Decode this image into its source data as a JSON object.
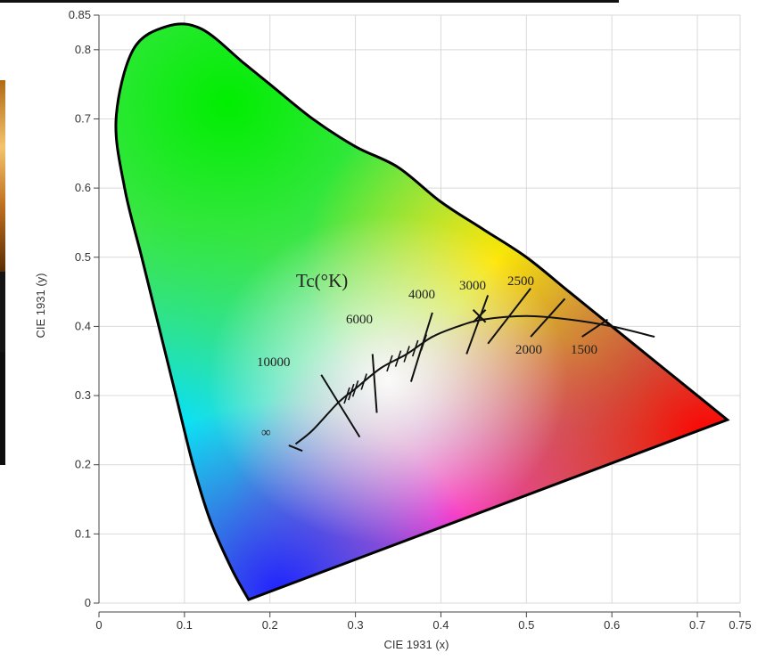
{
  "chart_data": {
    "type": "scatter",
    "title": "",
    "xlabel": "CIE 1931 (x)",
    "ylabel": "CIE 1931 (y)",
    "xlim": [
      0,
      0.75
    ],
    "ylim": [
      0,
      0.85
    ],
    "x_ticks": [
      "0",
      "0.1",
      "0.2",
      "0.3",
      "0.4",
      "0.5",
      "0.6",
      "0.7",
      "0.75"
    ],
    "y_ticks": [
      "0",
      "0.1",
      "0.2",
      "0.3",
      "0.4",
      "0.5",
      "0.6",
      "0.7",
      "0.8",
      "0.85"
    ],
    "grid": true,
    "spectral_locus": [
      [
        0.175,
        0.005
      ],
      [
        0.155,
        0.05
      ],
      [
        0.13,
        0.12
      ],
      [
        0.11,
        0.2
      ],
      [
        0.09,
        0.3
      ],
      [
        0.07,
        0.4
      ],
      [
        0.05,
        0.5
      ],
      [
        0.03,
        0.6
      ],
      [
        0.02,
        0.7
      ],
      [
        0.04,
        0.8
      ],
      [
        0.08,
        0.834
      ],
      [
        0.12,
        0.83
      ],
      [
        0.17,
        0.78
      ],
      [
        0.2,
        0.75
      ],
      [
        0.25,
        0.7
      ],
      [
        0.3,
        0.66
      ],
      [
        0.35,
        0.63
      ],
      [
        0.4,
        0.58
      ],
      [
        0.45,
        0.54
      ],
      [
        0.5,
        0.5
      ],
      [
        0.55,
        0.45
      ],
      [
        0.6,
        0.4
      ],
      [
        0.65,
        0.35
      ],
      [
        0.7,
        0.3
      ],
      [
        0.735,
        0.265
      ]
    ],
    "planckian_locus": [
      [
        0.23,
        0.23
      ],
      [
        0.25,
        0.25
      ],
      [
        0.28,
        0.29
      ],
      [
        0.3,
        0.31
      ],
      [
        0.33,
        0.34
      ],
      [
        0.36,
        0.36
      ],
      [
        0.39,
        0.385
      ],
      [
        0.42,
        0.4
      ],
      [
        0.45,
        0.41
      ],
      [
        0.5,
        0.415
      ],
      [
        0.55,
        0.41
      ],
      [
        0.6,
        0.4
      ],
      [
        0.65,
        0.385
      ]
    ],
    "isotherms": [
      {
        "label": "∞",
        "x1": 0.222,
        "y1": 0.228,
        "x2": 0.238,
        "y2": 0.22
      },
      {
        "label": "10000",
        "x1": 0.26,
        "y1": 0.33,
        "x2": 0.305,
        "y2": 0.24
      },
      {
        "label": "6000",
        "x1": 0.32,
        "y1": 0.36,
        "x2": 0.325,
        "y2": 0.275
      },
      {
        "label": "4000",
        "x1": 0.39,
        "y1": 0.42,
        "x2": 0.365,
        "y2": 0.32
      },
      {
        "label": "3000",
        "x1": 0.455,
        "y1": 0.445,
        "x2": 0.43,
        "y2": 0.36
      },
      {
        "label": "2500",
        "x1": 0.505,
        "y1": 0.455,
        "x2": 0.455,
        "y2": 0.375
      },
      {
        "label": "2000",
        "x1": 0.545,
        "y1": 0.44,
        "x2": 0.505,
        "y2": 0.385
      },
      {
        "label": "1500",
        "x1": 0.595,
        "y1": 0.41,
        "x2": 0.565,
        "y2": 0.385
      }
    ],
    "cct_title": "Tc(°K)",
    "cct_labels": [
      "10000",
      "6000",
      "4000",
      "3000",
      "2500",
      "2000",
      "1500",
      "∞"
    ]
  }
}
